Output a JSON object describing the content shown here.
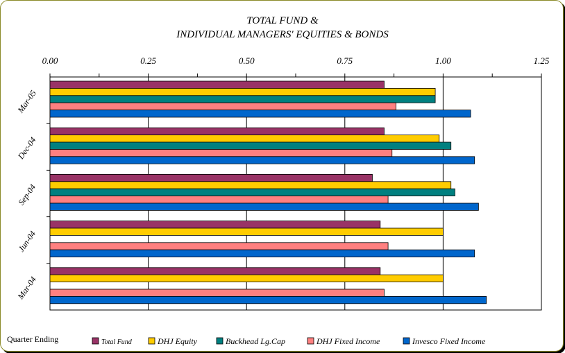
{
  "colors": {
    "total_fund": "#993366",
    "dhj_equity": "#ffcc00",
    "buckhead": "#008080",
    "dhj_fixed": "#ff8080",
    "invesco": "#0066cc",
    "frame": "#8a8a28"
  },
  "chart_data": {
    "type": "bar",
    "orientation": "horizontal",
    "title_line1": "TOTAL FUND &",
    "title_line2": "INDIVIDUAL MANAGERS' EQUITIES & BONDS",
    "xlabel": "",
    "ylabel": "",
    "axis_note": "Quarter Ending",
    "xlim": [
      0,
      1.25
    ],
    "xticks": [
      "0.00",
      "0.25",
      "0.50",
      "0.75",
      "1.00",
      "1.25"
    ],
    "grid": true,
    "legend_position": "bottom",
    "categories": [
      "Mar-05",
      "Dec-04",
      "Sep-04",
      "Jun-04",
      "Mar-04"
    ],
    "series": [
      {
        "name": "Total Fund",
        "key": "total_fund",
        "values": [
          0.85,
          0.85,
          0.82,
          0.84,
          0.84
        ]
      },
      {
        "name": "DHJ Equity",
        "key": "dhj_equity",
        "values": [
          0.98,
          0.99,
          1.02,
          1.0,
          1.0
        ]
      },
      {
        "name": "Buckhead Lg.Cap",
        "key": "buckhead",
        "values": [
          0.98,
          1.02,
          1.03,
          null,
          null
        ]
      },
      {
        "name": "DHJ Fixed Income",
        "key": "dhj_fixed",
        "values": [
          0.88,
          0.87,
          0.86,
          0.86,
          0.85
        ]
      },
      {
        "name": "Invesco Fixed Income",
        "key": "invesco",
        "values": [
          1.07,
          1.08,
          1.09,
          1.08,
          1.11
        ]
      }
    ]
  }
}
